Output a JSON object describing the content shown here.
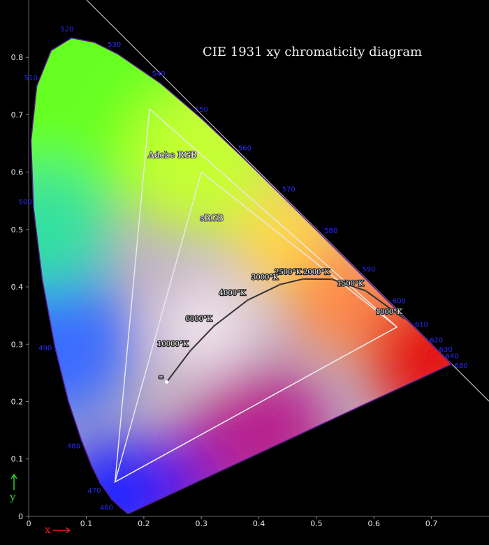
{
  "chart_data": {
    "type": "chromaticity",
    "title": "CIE 1931 xy chromaticity diagram",
    "xlabel": "x",
    "ylabel": "y",
    "xlim": [
      -0.05,
      0.8
    ],
    "ylim": [
      -0.05,
      0.9
    ],
    "xticks": [
      0,
      0.1,
      0.2,
      0.3,
      0.4,
      0.5,
      0.6,
      0.7
    ],
    "yticks": [
      0,
      0.1,
      0.2,
      0.3,
      0.4,
      0.5,
      0.6,
      0.7,
      0.8
    ],
    "spectral_locus": {
      "color": "#5a1890",
      "x": [
        0.1741,
        0.1733,
        0.1714,
        0.1644,
        0.1566,
        0.144,
        0.1241,
        0.1096,
        0.0913,
        0.0687,
        0.0454,
        0.0235,
        0.0082,
        0.0039,
        0.0139,
        0.0389,
        0.0743,
        0.1142,
        0.1547,
        0.2296,
        0.3016,
        0.3731,
        0.4441,
        0.5125,
        0.5752,
        0.627,
        0.6658,
        0.6915,
        0.7079,
        0.719,
        0.726,
        0.7347
      ],
      "y": [
        0.005,
        0.0048,
        0.0051,
        0.0109,
        0.0177,
        0.0297,
        0.0578,
        0.0868,
        0.1327,
        0.2007,
        0.295,
        0.4127,
        0.5384,
        0.6548,
        0.7502,
        0.812,
        0.8338,
        0.8262,
        0.8059,
        0.7543,
        0.6923,
        0.6245,
        0.5547,
        0.4866,
        0.4242,
        0.3725,
        0.334,
        0.3083,
        0.292,
        0.2809,
        0.274,
        0.2653
      ]
    },
    "wavelength_labels": {
      "color": "#2a2aff",
      "labels": [
        "460",
        "470",
        "480",
        "490",
        "500",
        "510",
        "520",
        "530",
        "540",
        "550",
        "560",
        "570",
        "580",
        "590",
        "600",
        "610",
        "620",
        "630",
        "640",
        "680"
      ],
      "x": [
        0.144,
        0.1241,
        0.0913,
        0.0454,
        0.0082,
        0.0139,
        0.0743,
        0.1547,
        0.2296,
        0.3016,
        0.3731,
        0.4441,
        0.5125,
        0.5752,
        0.627,
        0.6658,
        0.6915,
        0.7079,
        0.719,
        0.7347
      ],
      "y": [
        0.0297,
        0.0578,
        0.1327,
        0.295,
        0.5384,
        0.7502,
        0.8338,
        0.8059,
        0.7543,
        0.6923,
        0.6245,
        0.5547,
        0.4866,
        0.4242,
        0.3725,
        0.334,
        0.3083,
        0.292,
        0.2809,
        0.2653
      ]
    },
    "gamuts": [
      {
        "name": "Adobe RGB",
        "color": "#e8e8e8",
        "x": [
          0.64,
          0.21,
          0.15
        ],
        "y": [
          0.33,
          0.71,
          0.06
        ]
      },
      {
        "name": "sRGB",
        "color": "#e8e8e8",
        "x": [
          0.64,
          0.3,
          0.15
        ],
        "y": [
          0.33,
          0.6,
          0.06
        ]
      }
    ],
    "planckian_locus": {
      "color": "#333333",
      "labels": [
        "1000°K",
        "1500°K",
        "2000°K",
        "2500°K",
        "3000°K",
        "4000°K",
        "6000°K",
        "10000°K",
        "∞"
      ],
      "x": [
        0.6528,
        0.5857,
        0.5267,
        0.477,
        0.4369,
        0.3805,
        0.3221,
        0.2807,
        0.2399
      ],
      "y": [
        0.3444,
        0.3931,
        0.4133,
        0.4137,
        0.4041,
        0.3768,
        0.3318,
        0.2884,
        0.2342
      ]
    }
  }
}
